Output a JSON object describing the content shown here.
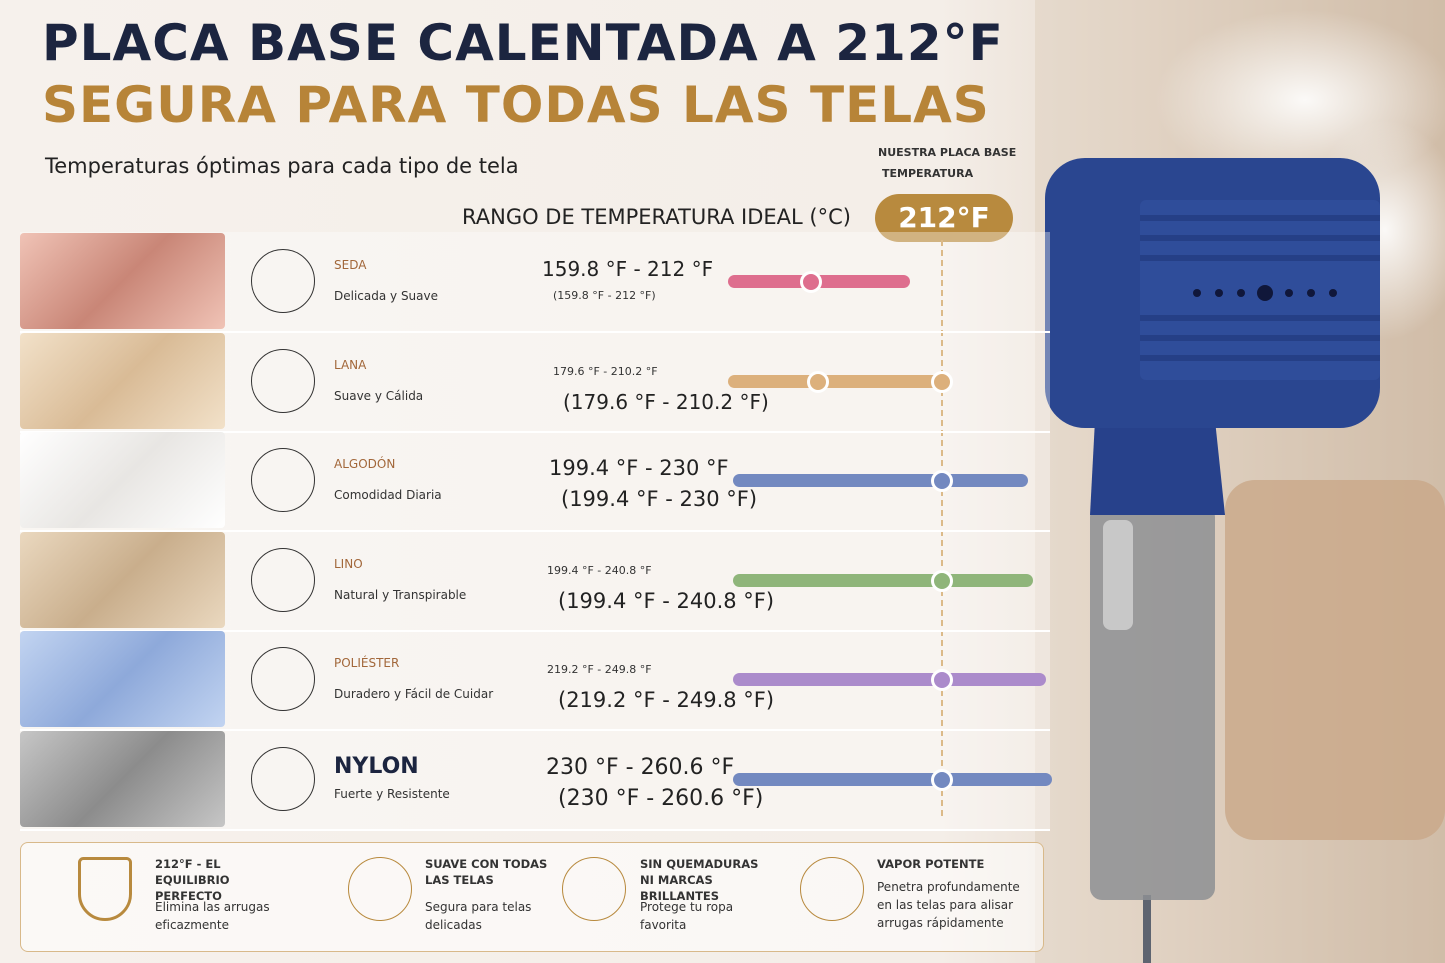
{
  "header": {
    "title": "PLACA BASE CALENTADA A 212°F",
    "subtitle": "SEGURA PARA TODAS LAS TELAS",
    "tagline": "Temperaturas óptimas para cada tipo de tela",
    "range_heading": "RANGO DE TEMPERATURA IDEAL (°C)"
  },
  "badge": {
    "caption_1": "NUESTRA PLACA BASE",
    "caption_2": "TEMPERATURA",
    "value": "212°F"
  },
  "fabrics": [
    {
      "name": "SEDA",
      "description": "Delicada y Suave",
      "range_1": "159.8 °F - 212 °F",
      "range_2": "(159.8 °F - 212 °F)"
    },
    {
      "name": "LANA",
      "description": "Suave y Cálida",
      "range_1": "179.6 °F - 210.2 °F",
      "range_2": "(179.6 °F - 210.2 °F)"
    },
    {
      "name": "ALGODÓN",
      "description": "Comodidad Diaria",
      "range_1": "199.4 °F - 230 °F",
      "range_2": "(199.4 °F - 230 °F)"
    },
    {
      "name": "LINO",
      "description": "Natural y Transpirable",
      "range_1": "199.4 °F - 240.8 °F",
      "range_2": "(199.4 °F - 240.8 °F)"
    },
    {
      "name": "POLIÉSTER",
      "description": "Duradero y Fácil de Cuidar",
      "range_1": "219.2 °F - 249.8 °F",
      "range_2": "(219.2 °F - 249.8 °F)"
    },
    {
      "name": "NYLON",
      "description": "Fuerte y Resistente",
      "range_1": "230 °F - 260.6 °F",
      "range_2": "(230 °F - 260.6 °F)"
    }
  ],
  "features": [
    {
      "title": "212°F - EL EQUILIBRIO PERFECTO",
      "text": "Elimina las arrugas eficazmente"
    },
    {
      "title": "SUAVE CON TODAS LAS TELAS",
      "text": "Segura para telas delicadas"
    },
    {
      "title": "SIN QUEMADURAS NI MARCAS BRILLANTES",
      "text": "Protege tu ropa favorita"
    },
    {
      "title": "VAPOR POTENTE",
      "text": "Penetra profundamente en las telas para alisar arrugas rápidamente"
    }
  ]
}
